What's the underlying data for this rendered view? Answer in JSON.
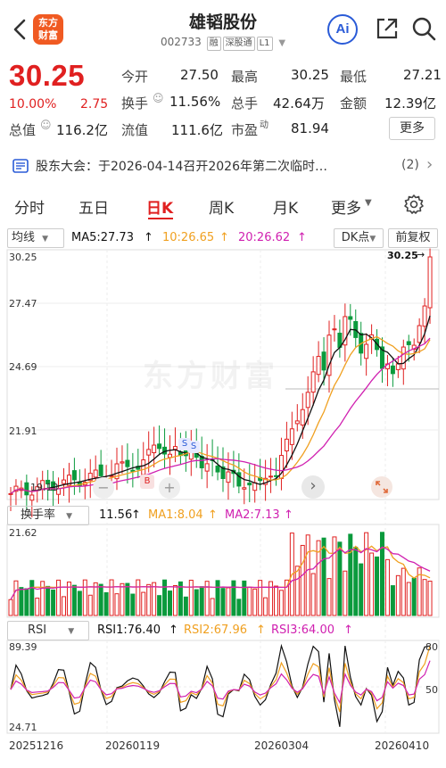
{
  "header": {
    "name": "雄韬股份",
    "code": "002733",
    "tags": [
      "融",
      "深股通",
      "L1"
    ],
    "logo_text_1": "东方",
    "logo_text_2": "财富",
    "ai_label": "Ai"
  },
  "quote": {
    "price": "30.25",
    "change_pct": "10.00%",
    "change": "2.75",
    "open_label": "今开",
    "open": "27.50",
    "high_label": "最高",
    "high": "30.25",
    "low_label": "最低",
    "low": "27.21",
    "turnover_label": "换手",
    "turnover": "11.56%",
    "volume_label": "总手",
    "volume": "42.64万",
    "amount_label": "金额",
    "amount": "12.39亿",
    "mktcap_label": "总值",
    "mktcap": "116.2亿",
    "float_label": "流值",
    "float": "111.6亿",
    "pe_label": "市盈",
    "pe_sup": "动",
    "pe": "81.94",
    "more_label": "更多"
  },
  "notice": {
    "text": "股东大会：于2026-04-14召开2026年第二次临时…",
    "count": "(2)"
  },
  "tabs": [
    "分时",
    "五日",
    "日K",
    "周K",
    "月K",
    "更多"
  ],
  "active_tab": "日K",
  "kline": {
    "ma_type": "均线",
    "ma5": "MA5:27.73",
    "ma10": "10:26.65",
    "ma20": "20:26.62",
    "dk_label": "DK点",
    "fq_label": "前复权",
    "y_labels": [
      "30.25",
      "27.47",
      "24.69",
      "21.91",
      "19.13"
    ],
    "last_price_tag": "30.25",
    "watermark": "东方财富"
  },
  "turnover_panel": {
    "name": "换手率",
    "value": "11.56",
    "ma1": "MA1:8.04",
    "ma2": "MA2:7.13",
    "max_label": "21.62"
  },
  "rsi_panel": {
    "name": "RSI",
    "rsi1": "RSI1:76.40",
    "rsi2": "RSI2:67.96",
    "rsi3": "RSI3:64.00",
    "top_label": "89.39",
    "bottom_label": "24.71",
    "ref_80": "80",
    "ref_50": "50"
  },
  "dates": [
    "20251216",
    "20260119",
    "20260304",
    "20260410"
  ],
  "colors": {
    "up": "#e02020",
    "down": "#0a9a3c",
    "ma5": "#111111",
    "ma10": "#f0a020",
    "ma20": "#d020b0",
    "accent_blue": "#2a5bd7"
  },
  "chart_data": {
    "type": "candlestick",
    "series": [
      {
        "name": "MA5",
        "values": [
          27.73
        ]
      },
      {
        "name": "MA10",
        "values": [
          26.65
        ]
      },
      {
        "name": "MA20",
        "values": [
          26.62
        ]
      }
    ],
    "ylim": [
      19.13,
      30.25
    ]
  }
}
